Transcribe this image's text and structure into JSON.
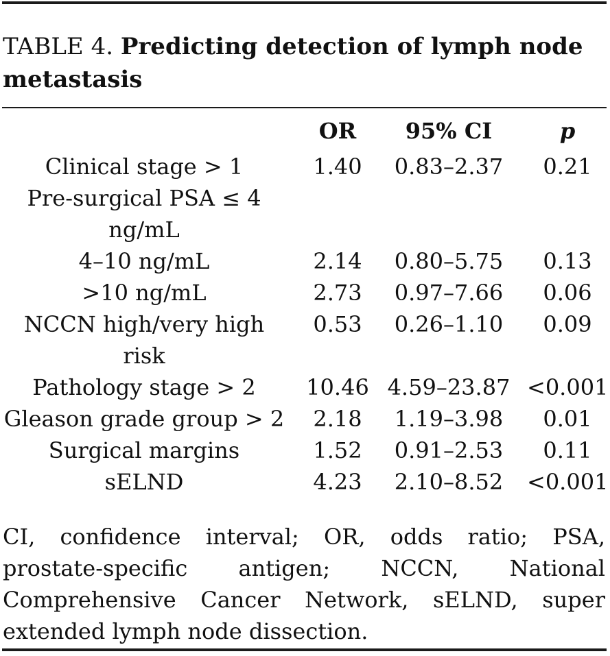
{
  "caption": {
    "label": "TABLE 4.",
    "title": "Predicting detection of lymph node metastasis"
  },
  "table": {
    "headers": [
      "",
      "OR",
      "95% CI",
      "p"
    ],
    "rows": [
      {
        "variable": "Clinical stage > 1",
        "or": "1.40",
        "ci": "0.83–2.37",
        "p": "0.21"
      },
      {
        "variable": "Pre-surgical PSA ≤ 4 ng/mL",
        "or": "",
        "ci": "",
        "p": ""
      },
      {
        "variable": "4–10 ng/mL",
        "or": "2.14",
        "ci": "0.80–5.75",
        "p": "0.13"
      },
      {
        "variable": ">10 ng/mL",
        "or": "2.73",
        "ci": "0.97–7.66",
        "p": "0.06"
      },
      {
        "variable": "NCCN high/very high risk",
        "or": "0.53",
        "ci": "0.26–1.10",
        "p": "0.09"
      },
      {
        "variable": "Pathology stage > 2",
        "or": "10.46",
        "ci": "4.59–23.87",
        "p": "<0.001"
      },
      {
        "variable": "Gleason grade group > 2",
        "or": "2.18",
        "ci": "1.19–3.98",
        "p": "0.01"
      },
      {
        "variable": "Surgical margins",
        "or": "1.52",
        "ci": "0.91–2.53",
        "p": "0.11"
      },
      {
        "variable": "sELND",
        "or": "4.23",
        "ci": "2.10–8.52",
        "p": "<0.001"
      }
    ]
  },
  "footnote": "CI, confidence interval; OR, odds ratio; PSA, prostate-specific antigen; NCCN, National Comprehensive Cancer Network, sELND, super extended lymph node dissection."
}
